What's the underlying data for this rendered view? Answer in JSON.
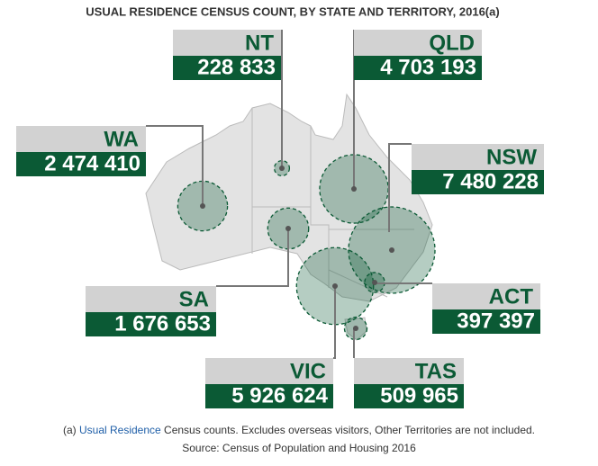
{
  "chart_data": {
    "type": "bubble-map",
    "title": "USUAL RESIDENCE CENSUS COUNT, BY STATE AND TERRITORY, 2016(a)",
    "categories": [
      "NT",
      "QLD",
      "WA",
      "NSW",
      "SA",
      "ACT",
      "VIC",
      "TAS"
    ],
    "values": [
      228833,
      4703193,
      2474410,
      7480228,
      1676653,
      397397,
      5926624,
      509965
    ],
    "value_labels": [
      "228 833",
      "4 703 193",
      "2 474 410",
      "7 480 228",
      "1 676 653",
      "397 397",
      "5 926 624",
      "509 965"
    ],
    "color": "#0b5a35",
    "footnote_prefix": "(a)",
    "footnote_link": "Usual Residence",
    "footnote_text": "Census counts. Excludes overseas visitors, Other Territories are not included.",
    "source": "Source: Census of Population and Housing 2016"
  }
}
